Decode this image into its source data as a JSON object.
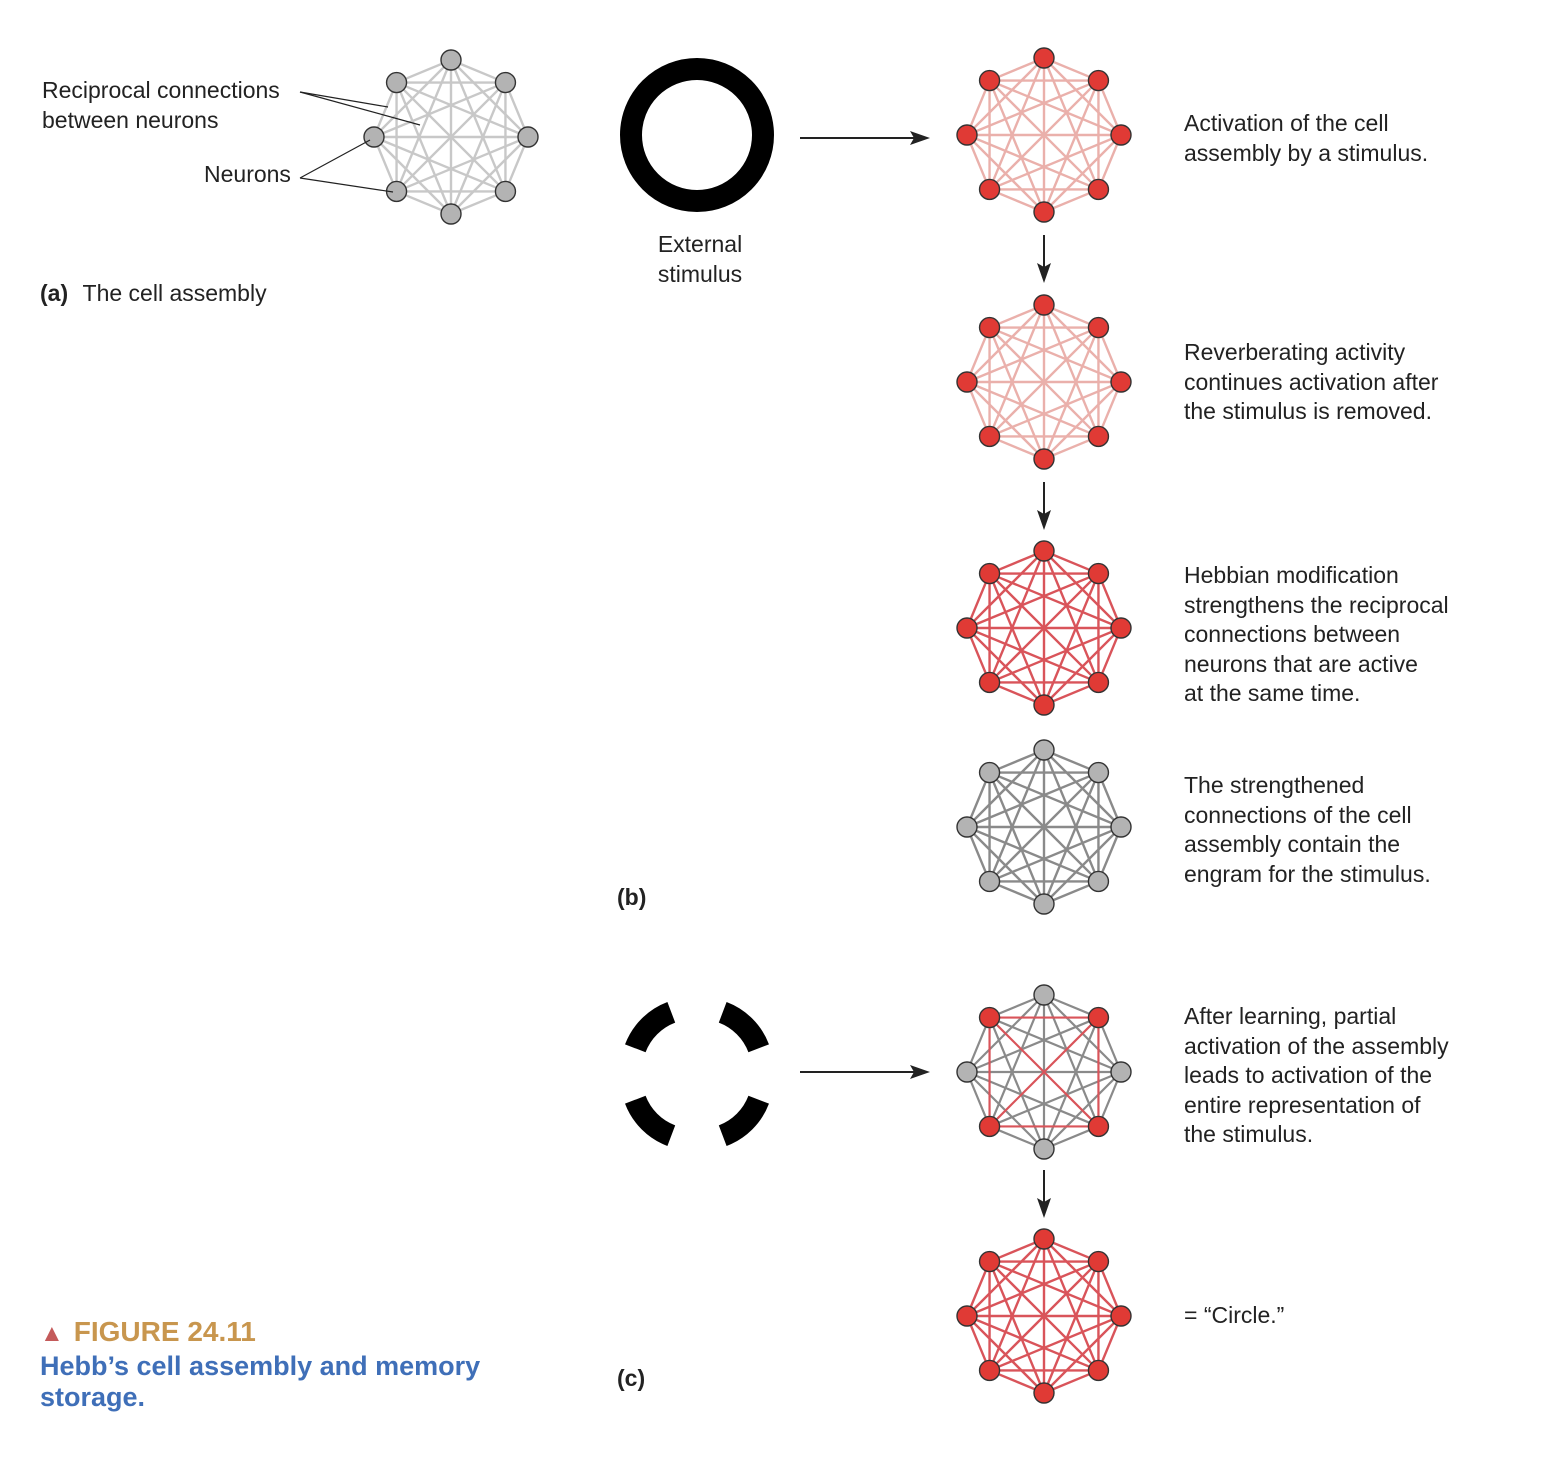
{
  "figure": {
    "number": "FIGURE 24.11",
    "title_lines": [
      "Hebb’s cell assembly and memory",
      "storage."
    ],
    "marker_icon": "triangle-up-icon",
    "label_color": "#c8964e",
    "title_color": "#3f6fb8"
  },
  "panel_a": {
    "letter": "(a)",
    "caption": "The cell assembly",
    "label_connections": [
      "Reciprocal connections",
      "between neurons"
    ],
    "label_neurons": "Neurons"
  },
  "panel_b": {
    "letter": "(b)",
    "stimulus_label": [
      "External",
      "stimulus"
    ],
    "steps": [
      [
        "Activation of the cell",
        "assembly by a stimulus."
      ],
      [
        "Reverberating activity",
        "continues activation after",
        "the stimulus is removed."
      ],
      [
        "Hebbian modification",
        "strengthens the reciprocal",
        "connections between",
        "neurons that are active",
        "at the same time."
      ],
      [
        "The strengthened",
        "connections of the cell",
        "assembly contain the",
        "engram for the stimulus."
      ]
    ]
  },
  "panel_c": {
    "letter": "(c)",
    "steps": [
      [
        "After learning, partial",
        "activation of the assembly",
        "leads to activation of the",
        "entire representation of",
        "the stimulus."
      ],
      [
        "= “Circle.”"
      ]
    ]
  },
  "colors": {
    "neuron_active": "#e03a35",
    "neuron_inactive": "#b3b3b3",
    "edge_faint_gray": "#c8c8c8",
    "edge_faint_red": "#eab0ab",
    "edge_strong_red": "#d9545a",
    "edge_strong_gray": "#8a8a8a"
  },
  "assemblies": [
    {
      "id": "a",
      "neurons": "all-inactive",
      "connections": "faint-gray"
    },
    {
      "id": "b1",
      "neurons": "all-active",
      "connections": "faint-red"
    },
    {
      "id": "b2",
      "neurons": "all-active",
      "connections": "faint-red"
    },
    {
      "id": "b3",
      "neurons": "all-active",
      "connections": "strong-red"
    },
    {
      "id": "b4",
      "neurons": "all-inactive",
      "connections": "strong-gray"
    },
    {
      "id": "c1",
      "neurons": "partial-active",
      "connections": "strong-gray-with-red-among-active"
    },
    {
      "id": "c2",
      "neurons": "all-active",
      "connections": "strong-red"
    }
  ]
}
